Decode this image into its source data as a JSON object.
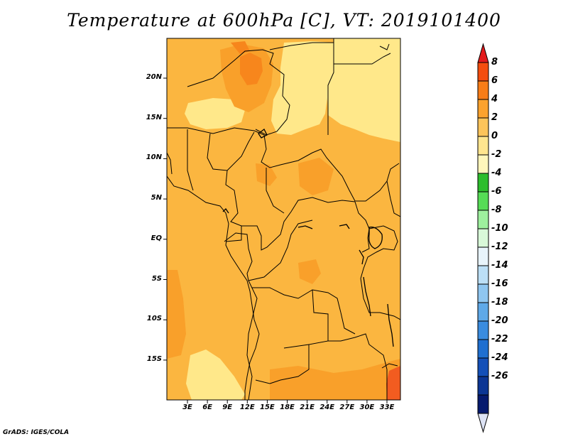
{
  "title": "Temperature at 600hPa [C], VT: 2019101400",
  "credit": "GrADS: IGES/COLA",
  "map": {
    "lat_labels": [
      "20N",
      "15N",
      "10N",
      "5N",
      "EQ",
      "5S",
      "10S",
      "15S"
    ],
    "lon_labels": [
      "3E",
      "6E",
      "9E",
      "12E",
      "15E",
      "18E",
      "21E",
      "24E",
      "27E",
      "30E",
      "33E"
    ],
    "field_colors": {
      "light_yellow": "#ffe88a",
      "main_orange": "#fbb640",
      "orange": "#f9a02a",
      "dark_orange": "#f7861c",
      "red_orange": "#f25c20"
    }
  },
  "colorbar": {
    "labels": [
      "8",
      "6",
      "4",
      "2",
      "0",
      "-2",
      "-4",
      "-6",
      "-8",
      "-10",
      "-12",
      "-14",
      "-16",
      "-18",
      "-20",
      "-22",
      "-24",
      "-26"
    ],
    "colors": [
      "#e31a1c",
      "#f44d0e",
      "#f87d17",
      "#fba22e",
      "#fdc45b",
      "#ffe58f",
      "#fff6bb",
      "#2dbd2d",
      "#56dc56",
      "#9ef09e",
      "#d8f8d8",
      "#e8f4fb",
      "#bcdff6",
      "#8fc6f0",
      "#5fa9e8",
      "#3a8cdf",
      "#1f6fd0",
      "#1450b8",
      "#0c3694",
      "#061a6e",
      "#dde3f5"
    ]
  }
}
